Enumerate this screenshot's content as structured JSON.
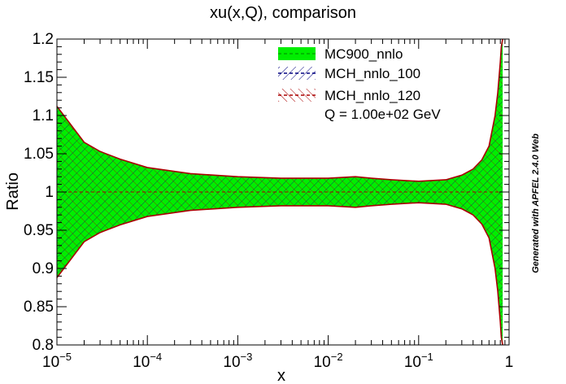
{
  "chart_data": {
    "type": "area",
    "title": "xu(x,Q), comparison",
    "xlabel": "x",
    "ylabel": "Ratio",
    "xscale": "log",
    "xlim": [
      1e-05,
      1
    ],
    "ylim": [
      0.8,
      1.2
    ],
    "x_ticks": [
      {
        "value": 1e-05,
        "label_base": "10",
        "label_exp": "−5"
      },
      {
        "value": 0.0001,
        "label_base": "10",
        "label_exp": "−4"
      },
      {
        "value": 0.001,
        "label_base": "10",
        "label_exp": "−3"
      },
      {
        "value": 0.01,
        "label_base": "10",
        "label_exp": "−2"
      },
      {
        "value": 0.1,
        "label_base": "10",
        "label_exp": "−1"
      },
      {
        "value": 1,
        "label_base": "1",
        "label_exp": ""
      }
    ],
    "y_ticks": [
      {
        "value": 0.8,
        "label": "0.8"
      },
      {
        "value": 0.85,
        "label": "0.85"
      },
      {
        "value": 0.9,
        "label": "0.9"
      },
      {
        "value": 0.95,
        "label": "0.95"
      },
      {
        "value": 1.0,
        "label": "1"
      },
      {
        "value": 1.05,
        "label": "1.05"
      },
      {
        "value": 1.1,
        "label": "1.1"
      },
      {
        "value": 1.15,
        "label": "1.15"
      },
      {
        "value": 1.2,
        "label": "1.2"
      }
    ],
    "x": [
      1e-05,
      2e-05,
      3e-05,
      5e-05,
      0.0001,
      0.0003,
      0.001,
      0.003,
      0.01,
      0.02,
      0.03,
      0.05,
      0.1,
      0.2,
      0.3,
      0.4,
      0.5,
      0.6,
      0.7,
      0.75,
      0.8,
      0.82,
      0.85
    ],
    "series": [
      {
        "name": "MC900_nnlo",
        "style": "fill",
        "color": "#00ee00",
        "line_color": "#00cc00",
        "upper": [
          1.112,
          1.065,
          1.053,
          1.043,
          1.032,
          1.024,
          1.02,
          1.018,
          1.018,
          1.02,
          1.018,
          1.016,
          1.014,
          1.016,
          1.022,
          1.03,
          1.042,
          1.06,
          1.1,
          1.13,
          1.17,
          1.19,
          1.2
        ],
        "lower": [
          0.888,
          0.935,
          0.947,
          0.957,
          0.968,
          0.976,
          0.98,
          0.982,
          0.982,
          0.98,
          0.982,
          0.984,
          0.986,
          0.984,
          0.978,
          0.97,
          0.958,
          0.94,
          0.9,
          0.87,
          0.83,
          0.81,
          0.8
        ],
        "central": [
          1,
          1,
          1,
          1,
          1,
          1,
          1,
          1,
          1,
          1,
          1,
          1,
          1,
          1,
          1,
          1,
          1,
          1,
          1,
          1,
          1,
          1,
          1
        ]
      },
      {
        "name": "MCH_nnlo_100",
        "style": "hatch",
        "color": "#000080",
        "upper": [
          1.112,
          1.065,
          1.053,
          1.043,
          1.032,
          1.024,
          1.02,
          1.018,
          1.018,
          1.02,
          1.018,
          1.016,
          1.014,
          1.016,
          1.022,
          1.03,
          1.042,
          1.06,
          1.1,
          1.13,
          1.17,
          1.19,
          1.2
        ],
        "lower": [
          0.888,
          0.935,
          0.947,
          0.957,
          0.968,
          0.976,
          0.98,
          0.982,
          0.982,
          0.98,
          0.982,
          0.984,
          0.986,
          0.984,
          0.978,
          0.97,
          0.958,
          0.94,
          0.9,
          0.87,
          0.83,
          0.81,
          0.8
        ],
        "central": [
          1,
          1,
          1,
          1,
          1,
          1,
          1,
          1,
          1,
          1,
          1,
          1,
          1,
          1,
          1,
          1,
          1,
          1,
          1,
          1,
          1,
          1,
          1
        ]
      },
      {
        "name": "MCH_nnlo_120",
        "style": "hatch",
        "color": "#aa0000",
        "upper": [
          1.112,
          1.065,
          1.053,
          1.043,
          1.032,
          1.024,
          1.02,
          1.018,
          1.018,
          1.02,
          1.018,
          1.016,
          1.014,
          1.016,
          1.022,
          1.03,
          1.042,
          1.06,
          1.1,
          1.13,
          1.17,
          1.19,
          1.2
        ],
        "lower": [
          0.888,
          0.935,
          0.947,
          0.957,
          0.968,
          0.976,
          0.98,
          0.982,
          0.982,
          0.98,
          0.982,
          0.984,
          0.986,
          0.984,
          0.978,
          0.97,
          0.958,
          0.94,
          0.9,
          0.87,
          0.83,
          0.81,
          0.8
        ],
        "central": [
          1,
          1,
          1,
          1,
          1,
          1,
          1,
          1,
          1,
          1,
          1,
          1,
          1,
          1,
          1,
          1,
          1,
          1,
          1,
          1,
          1,
          1,
          1
        ]
      }
    ],
    "annotations": [
      "Q = 1.00e+02 GeV"
    ],
    "side_note": "Generated with APFEL 2.4.0 Web",
    "legend_position": "top-right",
    "grid": false
  }
}
